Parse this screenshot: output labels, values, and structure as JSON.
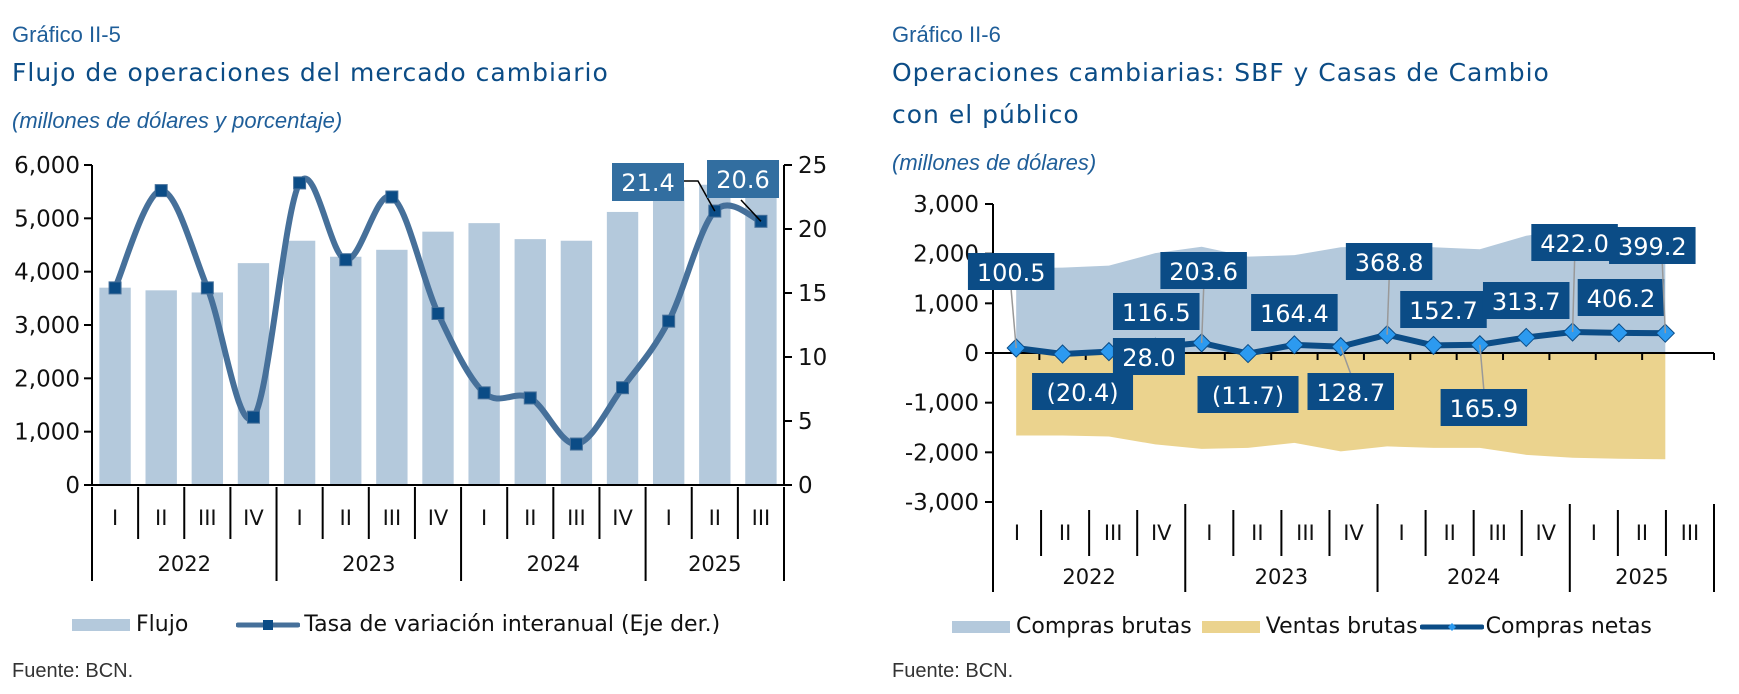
{
  "colors": {
    "title": "#0B4C86",
    "bar_fill": "#B4C9DC",
    "left_line": "#46709A",
    "left_marker": "#0B4C86",
    "left_label_bg": "#326EA0",
    "area_compras": "#B4C9DC",
    "area_ventas": "#EBD38E",
    "right_line": "#0B4C86",
    "right_marker": "#2C9AF0",
    "right_label_bg": "#0B4C86",
    "axis": "#000000"
  },
  "left": {
    "figure_number": "Gráfico II-5",
    "title": "Flujo de operaciones del mercado cambiario",
    "units": "(millones de dólares y porcentaje)",
    "source": "Fuente: BCN.",
    "legend": [
      {
        "label": "Flujo",
        "type": "bar"
      },
      {
        "label": "Tasa de variación interanual (Eje der.)",
        "type": "line"
      }
    ]
  },
  "right": {
    "figure_number": "Gráfico II-6",
    "title_line1": "Operaciones cambiarias: SBF y Casas de Cambio",
    "title_line2": "con el público",
    "units": "(millones de dólares)",
    "source": "Fuente: BCN.",
    "legend": [
      {
        "label": "Compras brutas",
        "type": "area"
      },
      {
        "label": "Ventas brutas",
        "type": "area"
      },
      {
        "label": "Compras netas",
        "type": "line"
      }
    ]
  },
  "chart_data": [
    {
      "type": "bar",
      "title": "Flujo de operaciones del mercado cambiario",
      "subtitle": "(millones de dólares y porcentaje)",
      "categories": [
        "I",
        "II",
        "III",
        "IV",
        "I",
        "II",
        "III",
        "IV",
        "I",
        "II",
        "III",
        "IV",
        "I",
        "II",
        "III"
      ],
      "year_groups": [
        {
          "label": "2022",
          "count": 4
        },
        {
          "label": "2023",
          "count": 4
        },
        {
          "label": "2024",
          "count": 4
        },
        {
          "label": "2025",
          "count": 3
        }
      ],
      "series": [
        {
          "name": "Flujo",
          "type": "bar",
          "axis": "left",
          "values": [
            3700,
            3650,
            3610,
            4160,
            4580,
            4280,
            4410,
            4750,
            4910,
            4610,
            4580,
            5120,
            5580,
            5630,
            5500
          ]
        },
        {
          "name": "Tasa de variación interanual (Eje der.)",
          "type": "line",
          "axis": "right",
          "values": [
            15.4,
            23.0,
            15.4,
            5.3,
            23.6,
            17.6,
            22.5,
            13.4,
            7.2,
            6.8,
            3.2,
            7.6,
            12.8,
            21.4,
            20.6
          ]
        }
      ],
      "data_labels": [
        {
          "index": 13,
          "text": "21.4"
        },
        {
          "index": 14,
          "text": "20.6"
        }
      ],
      "ylim": [
        0,
        6000
      ],
      "yticks": [
        "0",
        "1,000",
        "2,000",
        "3,000",
        "4,000",
        "5,000",
        "6,000"
      ],
      "y2lim": [
        0,
        25
      ],
      "y2ticks": [
        "0",
        "5",
        "10",
        "15",
        "20",
        "25"
      ],
      "xlabel": "",
      "ylabel": "",
      "grid": false,
      "legend_position": "bottom"
    },
    {
      "type": "area",
      "title": "Operaciones cambiarias: SBF y Casas de Cambio con el público",
      "subtitle": "(millones de dólares)",
      "categories": [
        "I",
        "II",
        "III",
        "IV",
        "I",
        "II",
        "III",
        "IV",
        "I",
        "II",
        "III",
        "IV",
        "I",
        "II",
        "III"
      ],
      "year_groups": [
        {
          "label": "2022",
          "count": 4
        },
        {
          "label": "2023",
          "count": 4
        },
        {
          "label": "2024",
          "count": 4
        },
        {
          "label": "2025",
          "count": 3
        }
      ],
      "series": [
        {
          "name": "Compras brutas",
          "type": "area",
          "values": [
            1710,
            1720,
            1760,
            2010,
            2140,
            1940,
            1970,
            2130,
            2150,
            2130,
            2090,
            2360,
            2500,
            2470,
            2440
          ]
        },
        {
          "name": "Ventas brutas",
          "type": "area",
          "values": [
            -1660,
            -1660,
            -1680,
            -1840,
            -1930,
            -1910,
            -1810,
            -1980,
            -1880,
            -1910,
            -1910,
            -2050,
            -2110,
            -2130,
            -2140
          ]
        },
        {
          "name": "Compras netas",
          "type": "line",
          "values": [
            100.5,
            -20.4,
            28.0,
            116.5,
            203.6,
            -11.7,
            164.4,
            128.7,
            368.8,
            152.7,
            165.9,
            313.7,
            422.0,
            406.2,
            399.2
          ]
        }
      ],
      "data_labels": [
        "100.5",
        "(20.4)",
        "28.0",
        "116.5",
        "203.6",
        "(11.7)",
        "164.4",
        "128.7",
        "368.8",
        "152.7",
        "165.9",
        "313.7",
        "422.0",
        "406.2",
        "399.2"
      ],
      "ylim": [
        -3000,
        3000
      ],
      "yticks": [
        "-3,000",
        "-2,000",
        "-1,000",
        "0",
        "1,000",
        "2,000",
        "3,000"
      ],
      "xlabel": "",
      "ylabel": "",
      "grid": false,
      "legend_position": "bottom"
    }
  ]
}
